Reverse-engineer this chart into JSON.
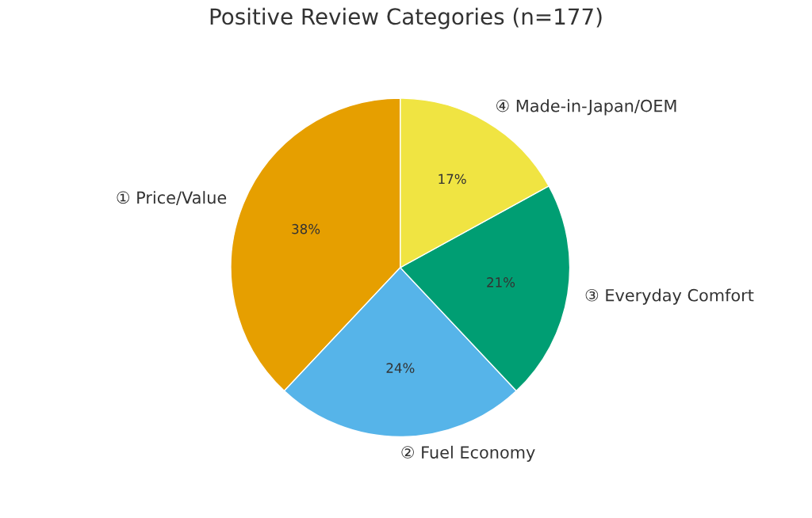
{
  "chart_data": {
    "type": "pie",
    "title": "Positive Review Categories (n=177)",
    "categories": [
      "① Price/Value",
      "② Fuel Economy",
      "③ Everyday Comfort",
      "④ Made-in-Japan/OEM"
    ],
    "values": [
      38,
      24,
      21,
      17
    ],
    "value_labels": [
      "38%",
      "24%",
      "21%",
      "17%"
    ],
    "colors": [
      "#e69f00",
      "#56b4e9",
      "#009e73",
      "#f0e442"
    ]
  }
}
